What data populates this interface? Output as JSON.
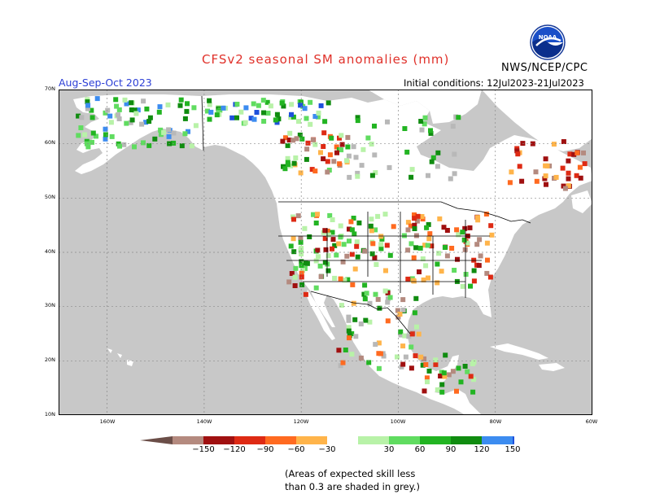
{
  "header": {
    "title": "CFSv2 seasonal SM anomalies (mm)",
    "agency": "NWS/NCEP/CPC",
    "season": "Aug-Sep-Oct 2023",
    "initial_conditions": "Initial conditions: 12Jul2023-21Jul2023",
    "logo_text": "NOAA"
  },
  "map": {
    "latitude_labels": [
      "70N",
      "60N",
      "50N",
      "40N",
      "30N",
      "20N",
      "10N"
    ],
    "longitude_labels": [
      "160W",
      "140W",
      "120W",
      "100W",
      "80W",
      "60W"
    ],
    "colors": {
      "ocean": "#c8c8c8",
      "land": "#ffffff",
      "grey_skill": "#b8b8b8",
      "grid": "#8a8a8a"
    }
  },
  "legend": {
    "ticks": [
      "−150",
      "−120",
      "−90",
      "−60",
      "−30",
      "30",
      "60",
      "90",
      "120",
      "150"
    ],
    "colors": [
      "#6b4e48",
      "#b48a7f",
      "#a01010",
      "#de2a14",
      "#ff6a20",
      "#ffb44a",
      "#ffffff",
      "#b8f2a8",
      "#60dc60",
      "#22b422",
      "#108c10",
      "#3c8cf0",
      "#1e50dc"
    ]
  },
  "note": {
    "line1": "(Areas of expected skill less",
    "line2": "than 0.3 are shaded in grey.)"
  }
}
